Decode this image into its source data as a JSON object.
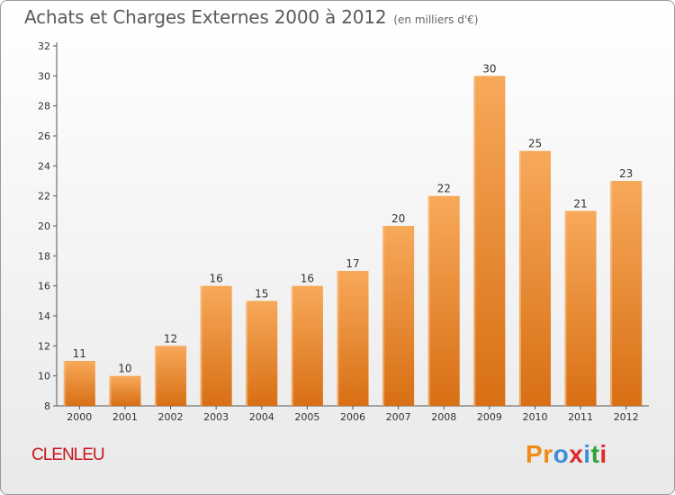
{
  "header": {
    "title": "Achats et Charges Externes 2000 à 2012",
    "subtitle": "(en milliers d'€)"
  },
  "footer": {
    "commune": "CLENLEU",
    "logo_text": "Proxiti"
  },
  "colors": {
    "bar_top": "#f7a95a",
    "bar_bottom": "#d86f14",
    "axis": "#555555",
    "commune": "#c4161c",
    "logo": [
      "#f28a1a",
      "#f28a1a",
      "#3c8fd6",
      "#e0282e",
      "#3c8fd6",
      "#2fa13a",
      "#e0282e"
    ]
  },
  "chart_data": {
    "type": "bar",
    "title": "Achats et Charges Externes 2000 à 2012",
    "subtitle": "(en milliers d'€)",
    "categories": [
      "2000",
      "2001",
      "2002",
      "2003",
      "2004",
      "2005",
      "2006",
      "2007",
      "2008",
      "2009",
      "2010",
      "2011",
      "2012"
    ],
    "values": [
      11,
      10,
      12,
      16,
      15,
      16,
      17,
      20,
      22,
      30,
      25,
      21,
      23
    ],
    "ylim": [
      8,
      32
    ],
    "yticks": [
      8,
      10,
      12,
      14,
      16,
      18,
      20,
      22,
      24,
      26,
      28,
      30,
      32
    ],
    "grid": false,
    "legend": "none"
  }
}
